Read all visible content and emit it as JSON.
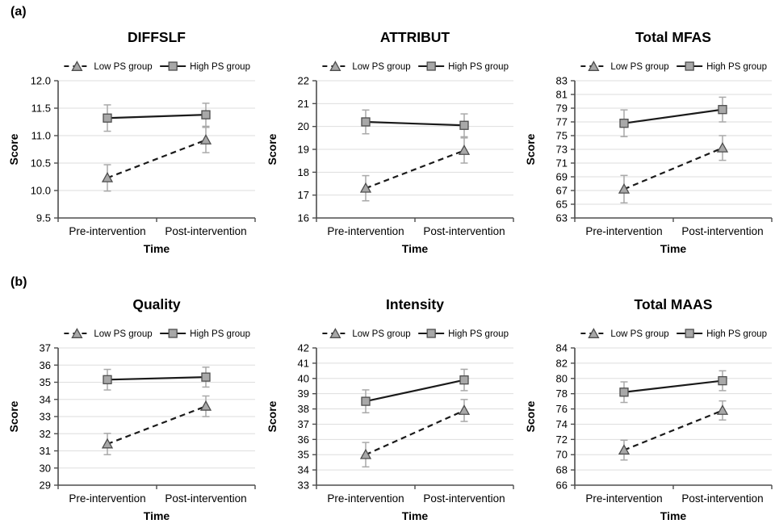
{
  "figure": {
    "panels": [
      {
        "label": "(a)"
      },
      {
        "label": "(b)"
      }
    ]
  },
  "legend": {
    "entries": [
      {
        "label": "Low PS group",
        "marker": "triangle",
        "line": "dashed"
      },
      {
        "label": "High PS group",
        "marker": "square",
        "line": "solid"
      }
    ],
    "position": "top"
  },
  "colors": {
    "line": "#1a1a1a",
    "marker_fill": "#a8a8a8",
    "marker_stroke": "#4d4d4d",
    "error_bar": "#a9a9a9",
    "gridline": "#dedede",
    "axis": "#4d4d4d",
    "text": "#000000"
  },
  "chart_data": [
    {
      "type": "line",
      "title": "DIFFSLF",
      "xlabel": "Time",
      "ylabel": "Score",
      "categories": [
        "Pre-intervention",
        "Post-intervention"
      ],
      "ylim": [
        9.5,
        12.0
      ],
      "ytick_step": 0.5,
      "ytick_decimals": 1,
      "grid": true,
      "series": [
        {
          "name": "Low PS group",
          "line": "dashed",
          "marker": "triangle",
          "values": [
            10.23,
            10.92
          ],
          "error": [
            0.24,
            0.23
          ]
        },
        {
          "name": "High PS group",
          "line": "solid",
          "marker": "square",
          "values": [
            11.32,
            11.38
          ],
          "error": [
            0.24,
            0.21
          ]
        }
      ]
    },
    {
      "type": "line",
      "title": "ATTRIBUT",
      "xlabel": "Time",
      "ylabel": "Score",
      "categories": [
        "Pre-intervention",
        "Post-intervention"
      ],
      "ylim": [
        16,
        22
      ],
      "ytick_step": 1,
      "ytick_decimals": 0,
      "grid": true,
      "series": [
        {
          "name": "Low PS group",
          "line": "dashed",
          "marker": "triangle",
          "values": [
            17.3,
            18.95
          ],
          "error": [
            0.55,
            0.55
          ]
        },
        {
          "name": "High PS group",
          "line": "solid",
          "marker": "square",
          "values": [
            20.2,
            20.05
          ],
          "error": [
            0.52,
            0.5
          ]
        }
      ]
    },
    {
      "type": "line",
      "title": "Total MFAS",
      "xlabel": "Time",
      "ylabel": "Score",
      "categories": [
        "Pre-intervention",
        "Post-intervention"
      ],
      "ylim": [
        63,
        83
      ],
      "ytick_step": 2,
      "ytick_decimals": 0,
      "grid": true,
      "series": [
        {
          "name": "Low PS group",
          "line": "dashed",
          "marker": "triangle",
          "values": [
            67.2,
            73.2
          ],
          "error": [
            2.0,
            1.8
          ]
        },
        {
          "name": "High PS group",
          "line": "solid",
          "marker": "square",
          "values": [
            76.8,
            78.8
          ],
          "error": [
            1.95,
            1.8
          ]
        }
      ]
    },
    {
      "type": "line",
      "title": "Quality",
      "xlabel": "Time",
      "ylabel": "Score",
      "categories": [
        "Pre-intervention",
        "Post-intervention"
      ],
      "ylim": [
        29,
        37
      ],
      "ytick_step": 1,
      "ytick_decimals": 0,
      "grid": true,
      "series": [
        {
          "name": "Low PS group",
          "line": "dashed",
          "marker": "triangle",
          "values": [
            31.4,
            33.6
          ],
          "error": [
            0.62,
            0.6
          ]
        },
        {
          "name": "High PS group",
          "line": "solid",
          "marker": "square",
          "values": [
            35.15,
            35.3
          ],
          "error": [
            0.6,
            0.58
          ]
        }
      ]
    },
    {
      "type": "line",
      "title": "Intensity",
      "xlabel": "Time",
      "ylabel": "Score",
      "categories": [
        "Pre-intervention",
        "Post-intervention"
      ],
      "ylim": [
        33,
        42
      ],
      "ytick_step": 1,
      "ytick_decimals": 0,
      "grid": true,
      "series": [
        {
          "name": "Low PS group",
          "line": "dashed",
          "marker": "triangle",
          "values": [
            35.0,
            37.9
          ],
          "error": [
            0.8,
            0.72
          ]
        },
        {
          "name": "High PS group",
          "line": "solid",
          "marker": "square",
          "values": [
            38.5,
            39.9
          ],
          "error": [
            0.75,
            0.7
          ]
        }
      ]
    },
    {
      "type": "line",
      "title": "Total MAAS",
      "xlabel": "Time",
      "ylabel": "Score",
      "categories": [
        "Pre-intervention",
        "Post-intervention"
      ],
      "ylim": [
        66,
        84
      ],
      "ytick_step": 2,
      "ytick_decimals": 0,
      "grid": true,
      "series": [
        {
          "name": "Low PS group",
          "line": "dashed",
          "marker": "triangle",
          "values": [
            70.6,
            75.8
          ],
          "error": [
            1.3,
            1.25
          ]
        },
        {
          "name": "High PS group",
          "line": "solid",
          "marker": "square",
          "values": [
            78.2,
            79.7
          ],
          "error": [
            1.35,
            1.3
          ]
        }
      ]
    }
  ]
}
